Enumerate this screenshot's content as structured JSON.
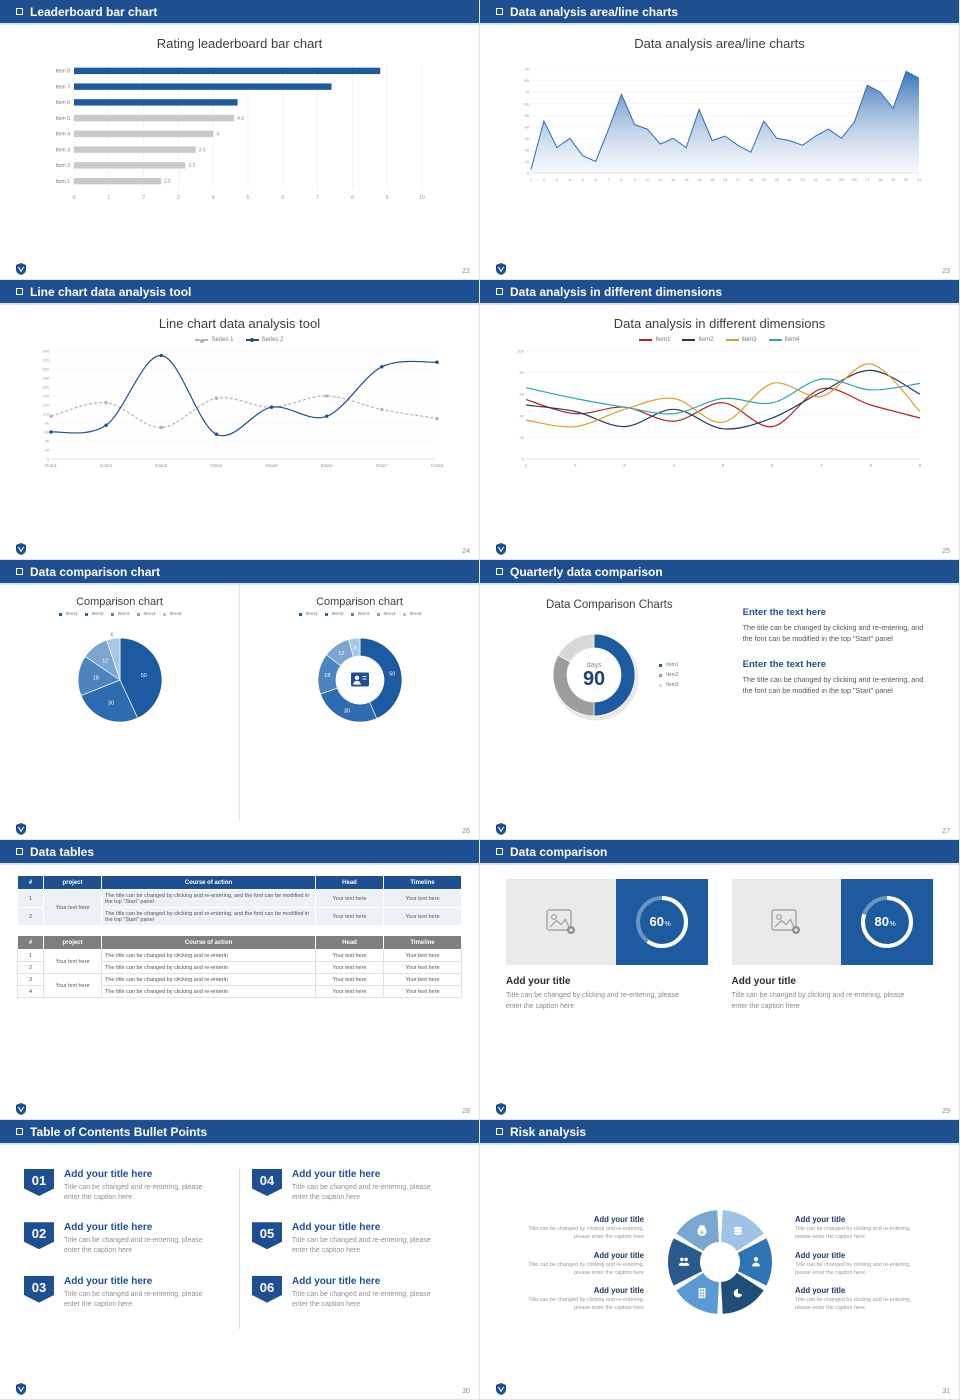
{
  "deck": {
    "accent": "#1e4f91",
    "background": "#ffffff",
    "header_text_color": "#ffffff"
  },
  "slides": [
    {
      "name": "leaderboard-bar-chart",
      "header": "Leaderboard bar chart",
      "page": "22",
      "title": "Rating leaderboard bar chart",
      "chart_data": {
        "type": "bar",
        "orientation": "horizontal",
        "title": "Rating leaderboard bar chart",
        "categories": [
          "Item 8",
          "Item 7",
          "Item 6",
          "Item 5",
          "Item 4",
          "Item 3",
          "Item 2",
          "Item 1"
        ],
        "values": [
          8.8,
          7.4,
          4.7,
          4.6,
          4,
          3.5,
          3.2,
          2.5
        ],
        "value_labels": [
          "",
          "",
          "",
          "4.6",
          "4",
          "3.5",
          "3.2",
          "2.5"
        ],
        "bar_colors": [
          "#1e5aa0",
          "#1e5aa0",
          "#1e5aa0",
          "#c9c9c9",
          "#c9c9c9",
          "#c9c9c9",
          "#c9c9c9",
          "#c9c9c9"
        ],
        "xlim": [
          0,
          10
        ],
        "xticks": [
          0,
          1,
          2,
          3,
          4,
          5,
          6,
          7,
          8,
          9,
          10
        ],
        "grid": true
      }
    },
    {
      "name": "area-line-charts",
      "header": "Data analysis area/line charts",
      "page": "23",
      "title": "Data analysis area/line charts",
      "chart_data": {
        "type": "area",
        "x": [
          1,
          2,
          3,
          4,
          5,
          6,
          7,
          8,
          9,
          10,
          11,
          12,
          13,
          14,
          15,
          16,
          17,
          18,
          19,
          20,
          21,
          22,
          23,
          24,
          25,
          26,
          27,
          28,
          29,
          30,
          31
        ],
        "values": [
          3,
          45,
          22,
          30,
          15,
          10,
          38,
          68,
          42,
          38,
          25,
          30,
          22,
          55,
          28,
          32,
          24,
          18,
          45,
          30,
          28,
          24,
          32,
          38,
          30,
          44,
          76,
          70,
          56,
          88,
          82
        ],
        "ylim": [
          0,
          90
        ],
        "yticks": [
          0,
          10,
          20,
          30,
          40,
          50,
          60,
          70,
          80,
          90
        ],
        "line_color": "#2e6db4",
        "fill_from": "#2e6db4",
        "fill_to": "#e8f0f9"
      }
    },
    {
      "name": "line-chart-tool",
      "header": "Line chart data analysis tool",
      "page": "24",
      "title": "Line chart data analysis tool",
      "chart_data": {
        "type": "line",
        "categories": [
          "Data1",
          "Data2",
          "Data3",
          "Data4",
          "Data5",
          "Data6",
          "Data7",
          "Data8"
        ],
        "ylim": [
          0,
          240
        ],
        "yticks": [
          0,
          20,
          40,
          60,
          80,
          100,
          120,
          140,
          160,
          180,
          200,
          220,
          240
        ],
        "series": [
          {
            "name": "Series 1",
            "color": "#b3b3b3",
            "dash": "3 2",
            "values": [
              95,
              125,
              70,
              135,
              115,
              140,
              110,
              90
            ]
          },
          {
            "name": "Series 2",
            "color": "#1e4f91",
            "dash": "",
            "values": [
              60,
              75,
              230,
              55,
              115,
              95,
              205,
              215
            ]
          }
        ]
      }
    },
    {
      "name": "dimensions-line-chart",
      "header": "Data analysis in different dimensions",
      "page": "25",
      "title": "Data analysis in different dimensions",
      "chart_data": {
        "type": "line",
        "x": [
          "1",
          "2",
          "3",
          "4",
          "5",
          "6",
          "7",
          "8",
          "9"
        ],
        "ylim": [
          0,
          100
        ],
        "yticks": [
          0,
          20,
          40,
          60,
          80,
          100
        ],
        "series": [
          {
            "name": "Item1",
            "color": "#b02418",
            "dash": "",
            "values": [
              55,
              42,
              48,
              35,
              52,
              30,
              65,
              50,
              38
            ]
          },
          {
            "name": "Item2",
            "color": "#1f3a68",
            "dash": "",
            "values": [
              50,
              44,
              30,
              46,
              28,
              38,
              62,
              82,
              60
            ]
          },
          {
            "name": "Item3",
            "color": "#e69a28",
            "dash": "",
            "values": [
              36,
              30,
              46,
              56,
              34,
              70,
              58,
              88,
              44
            ]
          },
          {
            "name": "Item4",
            "color": "#2fa3b4",
            "dash": "",
            "values": [
              66,
              56,
              48,
              42,
              56,
              52,
              74,
              64,
              70
            ]
          }
        ]
      }
    },
    {
      "name": "data-comparison-chart",
      "header": "Data comparison chart",
      "page": "26",
      "charts": [
        {
          "title": "Comparison chart",
          "legend": [
            "Item1",
            "Item2",
            "Item3",
            "Item4",
            "Item5"
          ],
          "chart_data": {
            "type": "pie",
            "donut": false,
            "labels": [
              "Item1",
              "Item2",
              "Item3",
              "Item4",
              "Item5"
            ],
            "values": [
              50,
              30,
              18,
              12,
              6
            ],
            "colors": [
              "#1e5aa0",
              "#2d6cb0",
              "#4c84bf",
              "#7ba6d2",
              "#a9c6e4"
            ]
          }
        },
        {
          "title": "Comparison chart",
          "legend": [
            "Item1",
            "Item2",
            "Item3",
            "Item4",
            "Item5"
          ],
          "chart_data": {
            "type": "pie",
            "donut": true,
            "labels": [
              "Item1",
              "Item2",
              "Item3",
              "Item4",
              "Item5"
            ],
            "values": [
              50,
              30,
              18,
              12,
              5
            ],
            "colors": [
              "#1e5aa0",
              "#2d6cb0",
              "#4c84bf",
              "#7ba6d2",
              "#a9c6e4"
            ]
          }
        }
      ]
    },
    {
      "name": "quarterly-data-comparison",
      "header": "Quarterly data comparison",
      "page": "27",
      "title": "Data Comparison Charts",
      "donut": {
        "chart_data": {
          "type": "pie",
          "donut": true,
          "labels": [
            "Item1",
            "Item2",
            "Item3"
          ],
          "values": [
            50,
            33,
            17
          ],
          "colors": [
            "#1e5aa0",
            "#9d9d9d",
            "#d8d8d8"
          ]
        },
        "center_label": "days",
        "center_value": "90",
        "legend": [
          "Item1",
          "Item2",
          "Item3"
        ]
      },
      "blocks": [
        {
          "heading": "Enter the text here",
          "body": "The title can be changed by clicking and re-entering, and the font can be modified in the top \"Start\" panel"
        },
        {
          "heading": "Enter the text here",
          "body": "The title can be changed by clicking and re-entering, and the font can be modified in the top \"Start\" panel"
        }
      ]
    },
    {
      "name": "data-tables",
      "header": "Data tables",
      "page": "28",
      "table1": {
        "headers": [
          "#",
          "project",
          "Course of action",
          "Head",
          "Timeline"
        ],
        "project": "Your text here",
        "rows": [
          {
            "n": "1",
            "course": "The title can be changed by clicking and re-entering, and the font can be modified in the top \"Start\" panel",
            "head": "Your text here",
            "timeline": "Your text here"
          },
          {
            "n": "2",
            "course": "The title can be changed by clicking and re-entering, and the font can be modified in the top \"Start\" panel",
            "head": "Your text here",
            "timeline": "Your text here"
          }
        ]
      },
      "table2": {
        "headers": [
          "#",
          "project",
          "Course of action",
          "Head",
          "Timeline"
        ],
        "groups": [
          {
            "project": "Your text here",
            "rows": [
              {
                "n": "1",
                "course": "The title can be changed by clicking and re-enterin",
                "head": "Your text here",
                "timeline": "Your text here"
              },
              {
                "n": "2",
                "course": "The title can be changed by clicking and re-enterin",
                "head": "Your text here",
                "timeline": "Your text here"
              }
            ]
          },
          {
            "project": "Your text here",
            "rows": [
              {
                "n": "3",
                "course": "The title can be changed by clicking and re-enterin",
                "head": "Your text here",
                "timeline": "Your text here"
              },
              {
                "n": "4",
                "course": "The title can be changed by clicking and re-enterin",
                "head": "Your text here",
                "timeline": "Your text here"
              }
            ]
          }
        ]
      }
    },
    {
      "name": "data-comparison-cards",
      "header": "Data comparison",
      "page": "29",
      "cards": [
        {
          "percent": 60,
          "title": "Add your title",
          "caption": "Title can be changed by clicking and re-entering, please enter the caption here"
        },
        {
          "percent": 80,
          "title": "Add your title",
          "caption": "Title can be changed by clicking and re-entering, please enter the caption here"
        }
      ]
    },
    {
      "name": "toc-bullet-points",
      "header": "Table of Contents Bullet Points",
      "page": "30",
      "items": [
        {
          "num": "01",
          "title": "Add your title here",
          "caption": "Title can be changed and re-entering, please enter the caption here"
        },
        {
          "num": "02",
          "title": "Add your title here",
          "caption": "Title can be changed and re-entering, please enter the caption here"
        },
        {
          "num": "03",
          "title": "Add your title here",
          "caption": "Title can be changed and re-entering, please enter the caption here"
        },
        {
          "num": "04",
          "title": "Add your title here",
          "caption": "Title can be changed and re-entering, please enter the caption here"
        },
        {
          "num": "05",
          "title": "Add your title here",
          "caption": "Title can be changed and re-entering, please enter the caption here"
        },
        {
          "num": "06",
          "title": "Add your title here",
          "caption": "Title can be changed and re-entering, please enter the caption here"
        }
      ]
    },
    {
      "name": "risk-analysis",
      "header": "Risk analysis",
      "page": "31",
      "items": [
        {
          "title": "Add your title",
          "caption": "Title can be changed by clicking and re-entering, please enter the caption here"
        },
        {
          "title": "Add your title",
          "caption": "Title can be changed by clicking and re-entering, please enter the caption here"
        },
        {
          "title": "Add your title",
          "caption": "Title can be changed by clicking and re-entering, please enter the caption here"
        },
        {
          "title": "Add your title",
          "caption": "Title can be changed by clicking and re-entering, please enter the caption here"
        },
        {
          "title": "Add your title",
          "caption": "Title can be changed by clicking and re-entering, please enter the caption here"
        },
        {
          "title": "Add your title",
          "caption": "Title can be changed by clicking and re-entering, please enter the caption here"
        }
      ],
      "wheel": {
        "colors": [
          "#9dc3e6",
          "#2e75b6",
          "#1f4e79",
          "#5b9bd5",
          "#2a5a8c",
          "#7aa7d0"
        ],
        "icons": [
          "coins",
          "person",
          "pie",
          "building",
          "people",
          "money-bag"
        ]
      }
    }
  ]
}
